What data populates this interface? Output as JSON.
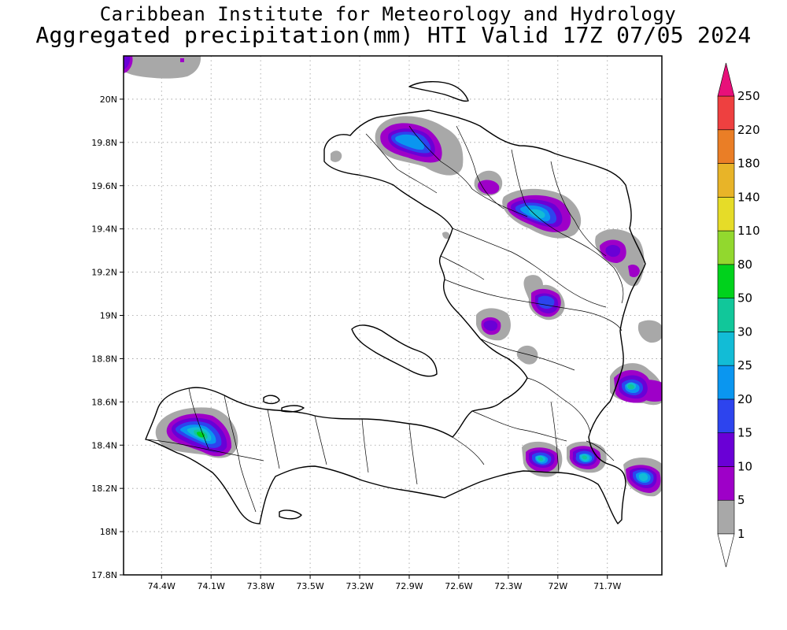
{
  "title": {
    "line1": "Caribbean Institute for Meteorology and Hydrology",
    "line2": "Aggregated precipitation(mm) HTI Valid 17Z 07/05 2024"
  },
  "axes": {
    "x_ticks": [
      "74.4W",
      "74.1W",
      "73.8W",
      "73.5W",
      "73.2W",
      "72.9W",
      "72.6W",
      "72.3W",
      "72W",
      "71.7W"
    ],
    "x_values": [
      -74.4,
      -74.1,
      -73.8,
      -73.5,
      -73.2,
      -72.9,
      -72.6,
      -72.3,
      -72.0,
      -71.7
    ],
    "y_ticks": [
      "20N",
      "19.8N",
      "19.6N",
      "19.4N",
      "19.2N",
      "19N",
      "18.8N",
      "18.6N",
      "18.4N",
      "18.2N",
      "18N",
      "17.8N"
    ],
    "y_values": [
      20.0,
      19.8,
      19.6,
      19.4,
      19.2,
      19.0,
      18.8,
      18.6,
      18.4,
      18.2,
      18.0,
      17.8
    ],
    "lon_range": [
      -74.63,
      -71.37
    ],
    "lat_range": [
      17.8,
      20.2
    ],
    "grid": true
  },
  "colorbar": {
    "labels": [
      "1",
      "5",
      "10",
      "15",
      "20",
      "25",
      "30",
      "50",
      "80",
      "110",
      "140",
      "180",
      "220",
      "250"
    ],
    "colors": [
      "#a8a8a8",
      "#9e00c8",
      "#6a00d6",
      "#2d44ee",
      "#0a96f0",
      "#12bcd6",
      "#11c79a",
      "#00d21c",
      "#92d82e",
      "#e6dc28",
      "#e8b428",
      "#ea7e26",
      "#ee4040",
      "#f01c7c"
    ],
    "overflow_color": "#e8107a"
  },
  "precipitation_cells": [
    {
      "lon": -72.95,
      "lat": 19.79,
      "peak": "15"
    },
    {
      "lon": -72.55,
      "lat": 19.6,
      "peak": "10"
    },
    {
      "lon": -72.2,
      "lat": 19.49,
      "peak": "25"
    },
    {
      "lon": -71.88,
      "lat": 19.31,
      "peak": "10"
    },
    {
      "lon": -71.75,
      "lat": 19.21,
      "peak": "10"
    },
    {
      "lon": -72.22,
      "lat": 19.06,
      "peak": "20"
    },
    {
      "lon": -72.56,
      "lat": 18.95,
      "peak": "10"
    },
    {
      "lon": -74.13,
      "lat": 18.44,
      "peak": "30"
    },
    {
      "lon": -71.7,
      "lat": 18.68,
      "peak": "30"
    },
    {
      "lon": -71.58,
      "lat": 18.65,
      "peak": "10"
    },
    {
      "lon": -72.28,
      "lat": 18.33,
      "peak": "30"
    },
    {
      "lon": -71.95,
      "lat": 18.34,
      "peak": "30"
    },
    {
      "lon": -71.6,
      "lat": 18.25,
      "peak": "25"
    },
    {
      "lon": -74.62,
      "lat": 20.18,
      "peak": "10"
    }
  ]
}
